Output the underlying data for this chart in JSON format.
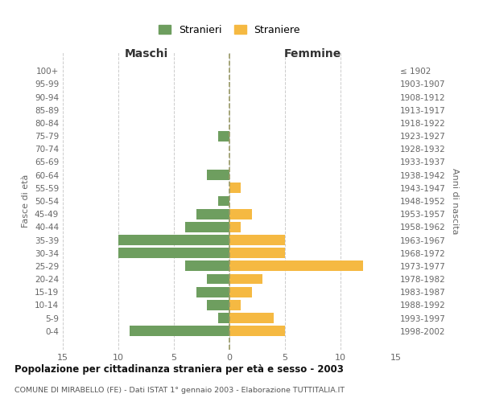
{
  "age_groups": [
    "100+",
    "95-99",
    "90-94",
    "85-89",
    "80-84",
    "75-79",
    "70-74",
    "65-69",
    "60-64",
    "55-59",
    "50-54",
    "45-49",
    "40-44",
    "35-39",
    "30-34",
    "25-29",
    "20-24",
    "15-19",
    "10-14",
    "5-9",
    "0-4"
  ],
  "birth_years": [
    "≤ 1902",
    "1903-1907",
    "1908-1912",
    "1913-1917",
    "1918-1922",
    "1923-1927",
    "1928-1932",
    "1933-1937",
    "1938-1942",
    "1943-1947",
    "1948-1952",
    "1953-1957",
    "1958-1962",
    "1963-1967",
    "1968-1972",
    "1973-1977",
    "1978-1982",
    "1983-1987",
    "1988-1992",
    "1993-1997",
    "1998-2002"
  ],
  "males": [
    0,
    0,
    0,
    0,
    0,
    1,
    0,
    0,
    2,
    0,
    1,
    3,
    4,
    10,
    10,
    4,
    2,
    3,
    2,
    1,
    9
  ],
  "females": [
    0,
    0,
    0,
    0,
    0,
    0,
    0,
    0,
    0,
    1,
    0,
    2,
    1,
    5,
    5,
    12,
    3,
    2,
    1,
    4,
    5
  ],
  "male_color": "#6e9e5f",
  "female_color": "#f5b942",
  "title": "Popolazione per cittadinanza straniera per età e sesso - 2003",
  "subtitle": "COMUNE DI MIRABELLO (FE) - Dati ISTAT 1° gennaio 2003 - Elaborazione TUTTITALIA.IT",
  "xlabel_left": "Maschi",
  "xlabel_right": "Femmine",
  "ylabel_left": "Fasce di età",
  "ylabel_right": "Anni di nascita",
  "legend_male": "Stranieri",
  "legend_female": "Straniere",
  "xlim": 15,
  "background_color": "#ffffff",
  "grid_color": "#cccccc",
  "bar_height": 0.8
}
